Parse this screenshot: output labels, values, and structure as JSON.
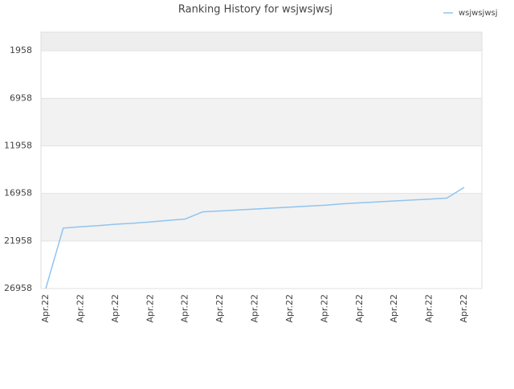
{
  "chart_data": {
    "type": "line",
    "title": "Ranking History for wsjwsjwsj",
    "categories": [
      "Apr.22",
      null,
      "Apr.22",
      null,
      "Apr.22",
      null,
      "Apr.22",
      null,
      "Apr.22",
      null,
      "Apr.22",
      null,
      "Apr.22",
      null,
      "Apr.22",
      null,
      "Apr.22",
      null,
      "Apr.22",
      null,
      "Apr.22",
      null,
      "Apr.22",
      null,
      "Apr.22"
    ],
    "series": [
      {
        "name": "wsjwsjwsj",
        "color": "#90c4f0",
        "values": [
          26958,
          20600,
          20456,
          20350,
          20200,
          20100,
          19950,
          19800,
          19650,
          18900,
          18800,
          18700,
          18600,
          18500,
          18400,
          18300,
          18200,
          18050,
          17950,
          17850,
          17750,
          17650,
          17550,
          17450,
          16320
        ]
      }
    ],
    "ylim": [
      26958,
      0
    ],
    "yticks": [
      1958,
      6958,
      11958,
      16958,
      21958,
      26958
    ],
    "grid": true,
    "legend": "top-right"
  }
}
